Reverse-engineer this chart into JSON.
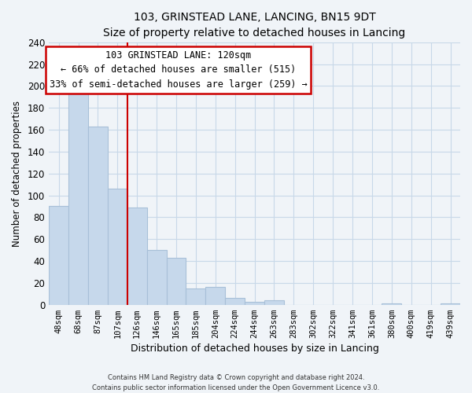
{
  "title": "103, GRINSTEAD LANE, LANCING, BN15 9DT",
  "subtitle": "Size of property relative to detached houses in Lancing",
  "xlabel": "Distribution of detached houses by size in Lancing",
  "ylabel": "Number of detached properties",
  "bar_labels": [
    "48sqm",
    "68sqm",
    "87sqm",
    "107sqm",
    "126sqm",
    "146sqm",
    "165sqm",
    "185sqm",
    "204sqm",
    "224sqm",
    "244sqm",
    "263sqm",
    "283sqm",
    "302sqm",
    "322sqm",
    "341sqm",
    "361sqm",
    "380sqm",
    "400sqm",
    "419sqm",
    "439sqm"
  ],
  "bar_values": [
    90,
    200,
    163,
    106,
    89,
    50,
    43,
    15,
    16,
    6,
    3,
    4,
    0,
    0,
    0,
    0,
    0,
    1,
    0,
    0,
    1
  ],
  "bar_color": "#c6d8eb",
  "bar_edge_color": "#a8c0d8",
  "vline_index": 4,
  "vline_color": "#cc0000",
  "annotation_line1": "103 GRINSTEAD LANE: 120sqm",
  "annotation_line2": "← 66% of detached houses are smaller (515)",
  "annotation_line3": "33% of semi-detached houses are larger (259) →",
  "annotation_box_color": "#ffffff",
  "annotation_box_edge_color": "#cc0000",
  "ylim": [
    0,
    240
  ],
  "yticks": [
    0,
    20,
    40,
    60,
    80,
    100,
    120,
    140,
    160,
    180,
    200,
    220,
    240
  ],
  "footnote1": "Contains HM Land Registry data © Crown copyright and database right 2024.",
  "footnote2": "Contains public sector information licensed under the Open Government Licence v3.0.",
  "bg_color": "#f0f4f8",
  "grid_color": "#c8d8e8",
  "title_fontsize": 11,
  "subtitle_fontsize": 10
}
